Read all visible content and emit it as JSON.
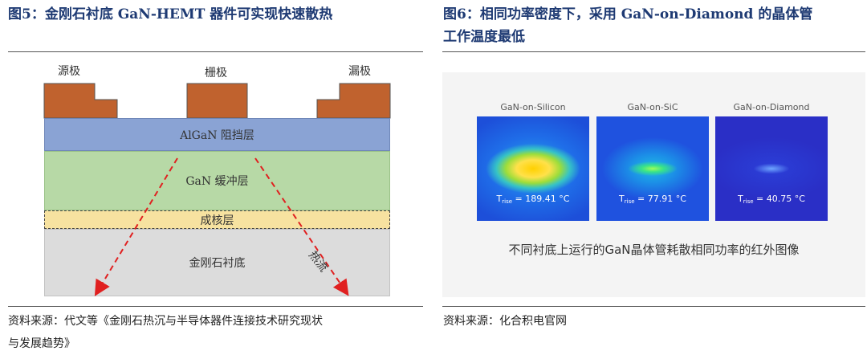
{
  "left": {
    "title": "图5：金刚石衬底 GaN-HEMT 器件可实现快速散热",
    "electrodes": {
      "source": "源极",
      "gate": "栅极",
      "drain": "漏极"
    },
    "layers": {
      "algan": "AlGaN 阻挡层",
      "gan": "GaN 缓冲层",
      "nucleation": "成核层",
      "substrate": "金刚石衬底"
    },
    "heat_label": "热流",
    "source_line1": "资料来源：代文等《金刚石热沉与半导体器件连接技术研究现状",
    "source_line2": "与发展趋势》",
    "colors": {
      "electrode": "#c0622e",
      "algan": "#8aa3d4",
      "gan": "#b7d9a6",
      "nucleation": "#f7e2a0",
      "substrate": "#dcdcdc",
      "arrow": "#e02020"
    }
  },
  "right": {
    "title_line1": "图6：相同功率密度下，采用 GaN-on-Diamond 的晶体管",
    "title_line2": "工作温度最低",
    "images": [
      {
        "label": "GaN-on-Silicon",
        "t_prefix": "T",
        "t_sub": "rise",
        "t_value": " = 189.41 °C"
      },
      {
        "label": "GaN-on-SiC",
        "t_prefix": "T",
        "t_sub": "rise",
        "t_value": " = 77.91 °C"
      },
      {
        "label": "GaN-on-Diamond",
        "t_prefix": "T",
        "t_sub": "rise",
        "t_value": " = 40.75 °C"
      }
    ],
    "caption": "不同衬底上运行的GaN晶体管耗散相同功率的红外图像",
    "source": "资料来源：化合积电官网"
  }
}
